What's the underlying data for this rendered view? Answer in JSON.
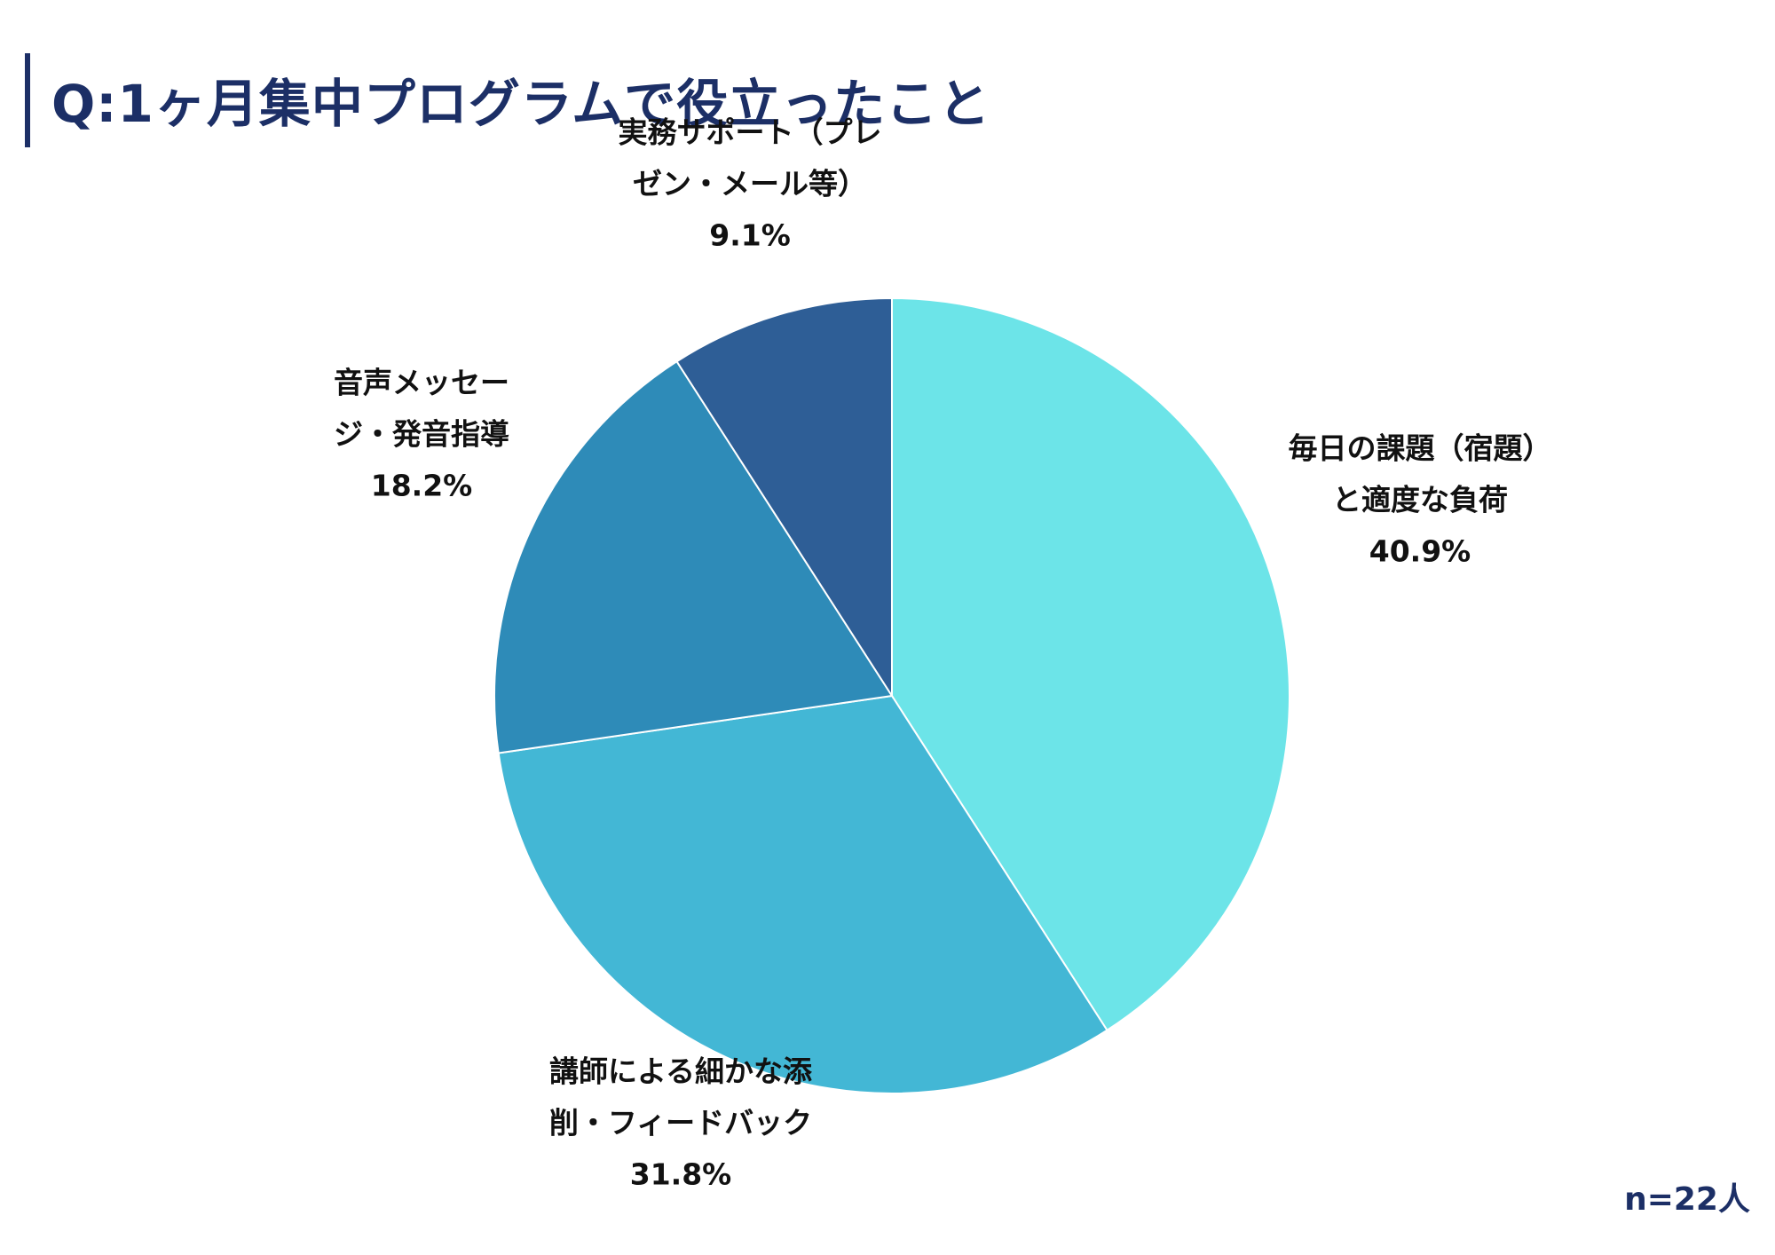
{
  "title": "Q:1ヶ月集中プログラムで役立ったこと",
  "sample_size": "n=22人",
  "chart_data": {
    "type": "pie",
    "start_angle_deg": 0,
    "direction": "clockwise",
    "slices": [
      {
        "label_lines": [
          "毎日の課題（宿題）",
          "と適度な負荷"
        ],
        "percent_text": "40.9%",
        "value": 40.9,
        "color": "#6ce4e8"
      },
      {
        "label_lines": [
          "講師による細かな添",
          "削・フィードバック"
        ],
        "percent_text": "31.8%",
        "value": 31.8,
        "color": "#43b7d5"
      },
      {
        "label_lines": [
          "音声メッセー",
          "ジ・発音指導"
        ],
        "percent_text": "18.2%",
        "value": 18.2,
        "color": "#2e8bb8"
      },
      {
        "label_lines": [
          "実務サポート（プレ",
          "ゼン・メール等）"
        ],
        "percent_text": "9.1%",
        "value": 9.1,
        "color": "#2e5e96"
      }
    ]
  }
}
